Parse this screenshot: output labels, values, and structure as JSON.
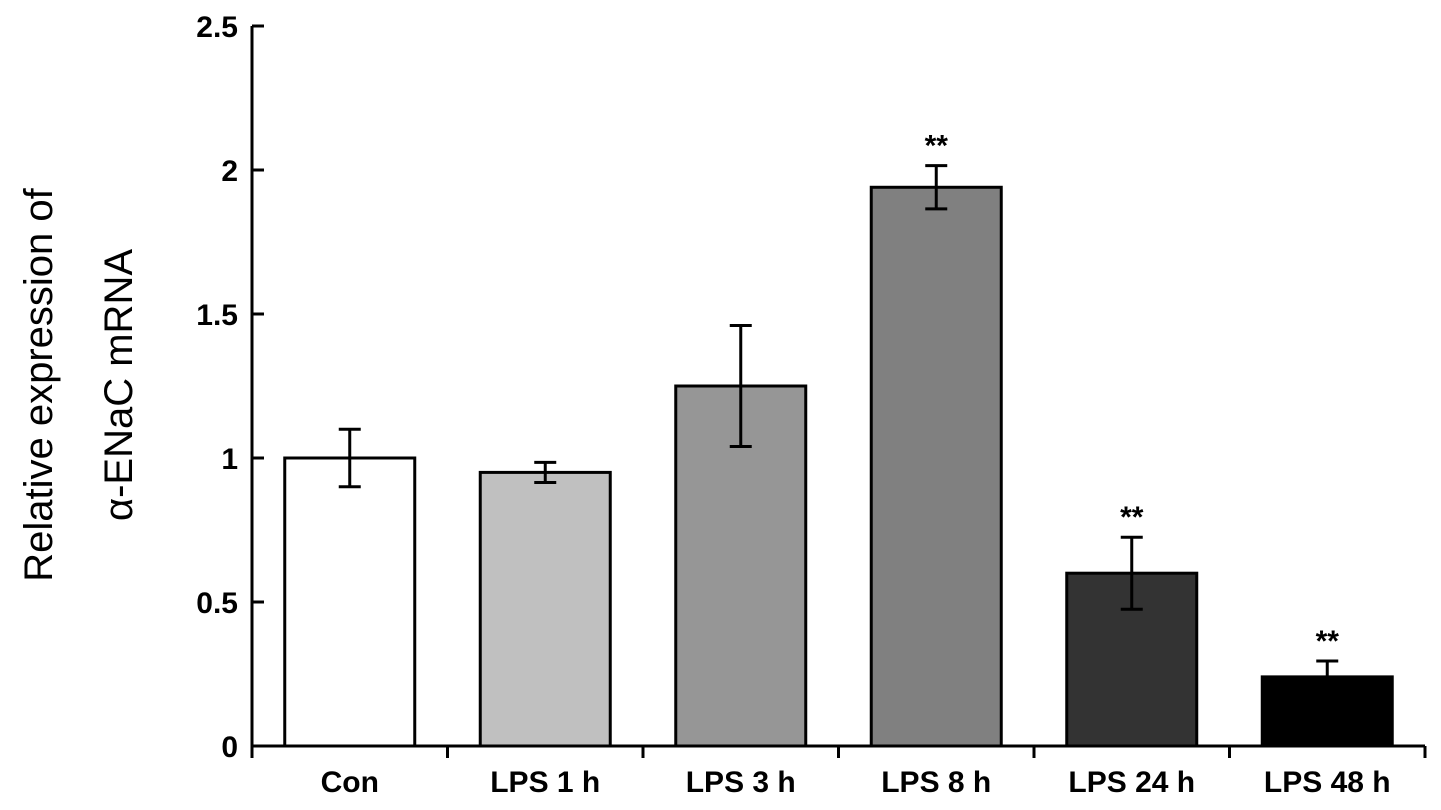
{
  "chart_data": {
    "type": "bar",
    "title": "",
    "xlabel": "",
    "ylabel_lines": [
      "Relative expression of",
      "α-ENaC mRNA"
    ],
    "categories": [
      "Con",
      "LPS 1 h",
      "LPS 3 h",
      "LPS 8 h",
      "LPS 24 h",
      "LPS 48 h"
    ],
    "values": [
      1.0,
      0.95,
      1.25,
      1.94,
      0.6,
      0.24
    ],
    "errors": [
      0.1,
      0.035,
      0.21,
      0.075,
      0.125,
      0.055
    ],
    "significance": [
      "",
      "",
      "",
      "**",
      "**",
      "**"
    ],
    "bar_colors": [
      "#ffffff",
      "#c0c0c0",
      "#969696",
      "#808080",
      "#333333",
      "#000000"
    ],
    "ylim": [
      0,
      2.5
    ],
    "yticks": [
      0,
      0.5,
      1,
      1.5,
      2,
      2.5
    ],
    "ytick_labels": [
      "0",
      "0.5",
      "1",
      "1.5",
      "2",
      "2.5"
    ],
    "grid": false,
    "legend": "none"
  }
}
